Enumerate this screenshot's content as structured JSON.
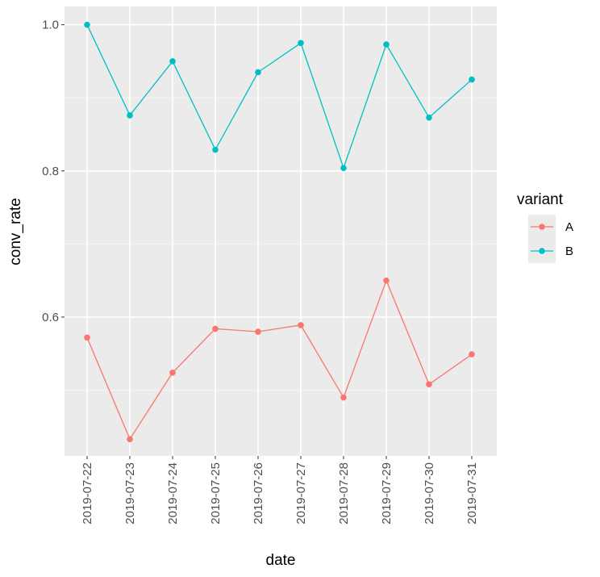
{
  "chart_data": {
    "type": "line",
    "xlabel": "date",
    "ylabel": "conv_rate",
    "x": [
      "2019-07-22",
      "2019-07-23",
      "2019-07-24",
      "2019-07-25",
      "2019-07-26",
      "2019-07-27",
      "2019-07-28",
      "2019-07-29",
      "2019-07-30",
      "2019-07-31"
    ],
    "y_ticks": [
      "0.6",
      "0.8",
      "1.0"
    ],
    "ylim": [
      0.41,
      1.025
    ],
    "grid": true,
    "legend": {
      "title": "variant",
      "position": "right"
    },
    "series": [
      {
        "name": "A",
        "color": "#F8766D",
        "values": [
          0.572,
          0.433,
          0.524,
          0.584,
          0.58,
          0.589,
          0.49,
          0.65,
          0.508,
          0.549
        ]
      },
      {
        "name": "B",
        "color": "#00BFC4",
        "values": [
          1.0,
          0.876,
          0.95,
          0.829,
          0.935,
          0.975,
          0.804,
          0.973,
          0.873,
          0.925
        ]
      }
    ]
  }
}
